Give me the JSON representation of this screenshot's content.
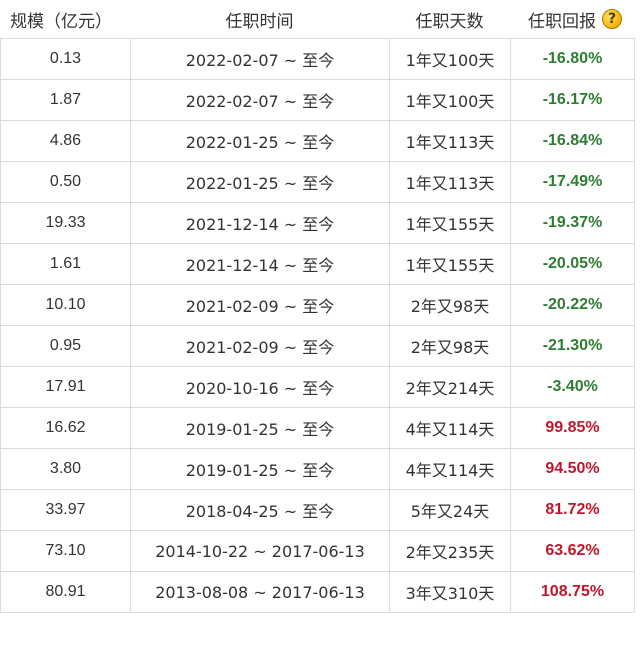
{
  "header": {
    "size": "规模（亿元）",
    "period": "任职时间",
    "days": "任职天数",
    "return": "任职回报",
    "help_icon": "?"
  },
  "rows": [
    {
      "size": "0.13",
      "period": "2022-02-07 ~ 至今",
      "days": "1年又100天",
      "return": "-16.80%",
      "trend": "neg"
    },
    {
      "size": "1.87",
      "period": "2022-02-07 ~ 至今",
      "days": "1年又100天",
      "return": "-16.17%",
      "trend": "neg"
    },
    {
      "size": "4.86",
      "period": "2022-01-25 ~ 至今",
      "days": "1年又113天",
      "return": "-16.84%",
      "trend": "neg"
    },
    {
      "size": "0.50",
      "period": "2022-01-25 ~ 至今",
      "days": "1年又113天",
      "return": "-17.49%",
      "trend": "neg"
    },
    {
      "size": "19.33",
      "period": "2021-12-14 ~ 至今",
      "days": "1年又155天",
      "return": "-19.37%",
      "trend": "neg"
    },
    {
      "size": "1.61",
      "period": "2021-12-14 ~ 至今",
      "days": "1年又155天",
      "return": "-20.05%",
      "trend": "neg"
    },
    {
      "size": "10.10",
      "period": "2021-02-09 ~ 至今",
      "days": "2年又98天",
      "return": "-20.22%",
      "trend": "neg"
    },
    {
      "size": "0.95",
      "period": "2021-02-09 ~ 至今",
      "days": "2年又98天",
      "return": "-21.30%",
      "trend": "neg"
    },
    {
      "size": "17.91",
      "period": "2020-10-16 ~ 至今",
      "days": "2年又214天",
      "return": "-3.40%",
      "trend": "neg"
    },
    {
      "size": "16.62",
      "period": "2019-01-25 ~ 至今",
      "days": "4年又114天",
      "return": "99.85%",
      "trend": "pos"
    },
    {
      "size": "3.80",
      "period": "2019-01-25 ~ 至今",
      "days": "4年又114天",
      "return": "94.50%",
      "trend": "pos"
    },
    {
      "size": "33.97",
      "period": "2018-04-25 ~ 至今",
      "days": "5年又24天",
      "return": "81.72%",
      "trend": "pos"
    },
    {
      "size": "73.10",
      "period": "2014-10-22 ~ 2017-06-13",
      "days": "2年又235天",
      "return": "63.62%",
      "trend": "pos"
    },
    {
      "size": "80.91",
      "period": "2013-08-08 ~ 2017-06-13",
      "days": "3年又310天",
      "return": "108.75%",
      "trend": "pos"
    }
  ],
  "colors": {
    "negative": "#2e7d32",
    "positive": "#c0162b",
    "border": "#dcdcdc",
    "help_icon": "#f2b400"
  }
}
